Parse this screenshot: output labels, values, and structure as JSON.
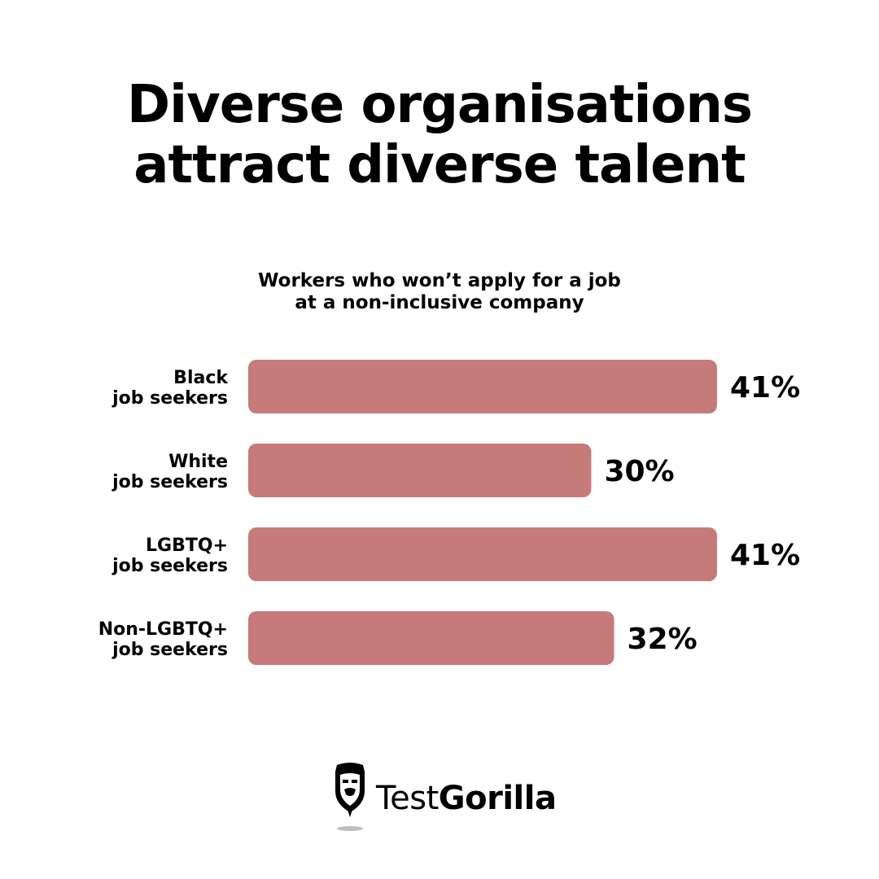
{
  "title": {
    "line1": "Diverse organisations",
    "line2": "attract diverse talent"
  },
  "subtitle": {
    "line1": "Workers who won’t apply for a job",
    "line2": "at a non-inclusive company"
  },
  "chart_data": {
    "type": "bar",
    "orientation": "horizontal",
    "title": "Workers who won’t apply for a job at a non-inclusive company",
    "categories": [
      [
        "Black",
        "job seekers"
      ],
      [
        "White",
        "job seekers"
      ],
      [
        "LGBTQ+",
        "job seekers"
      ],
      [
        "Non-LGBTQ+",
        "job seekers"
      ]
    ],
    "values": [
      41,
      30,
      41,
      32
    ],
    "value_labels": [
      "41%",
      "30%",
      "41%",
      "32%"
    ],
    "unit": "%",
    "xlim": [
      0,
      41
    ],
    "grid": false,
    "legend": "none",
    "bar_color": "#c67a7a"
  },
  "logo": {
    "text_light": "Test",
    "text_bold": "Gorilla",
    "icon": "gorilla-icon"
  }
}
